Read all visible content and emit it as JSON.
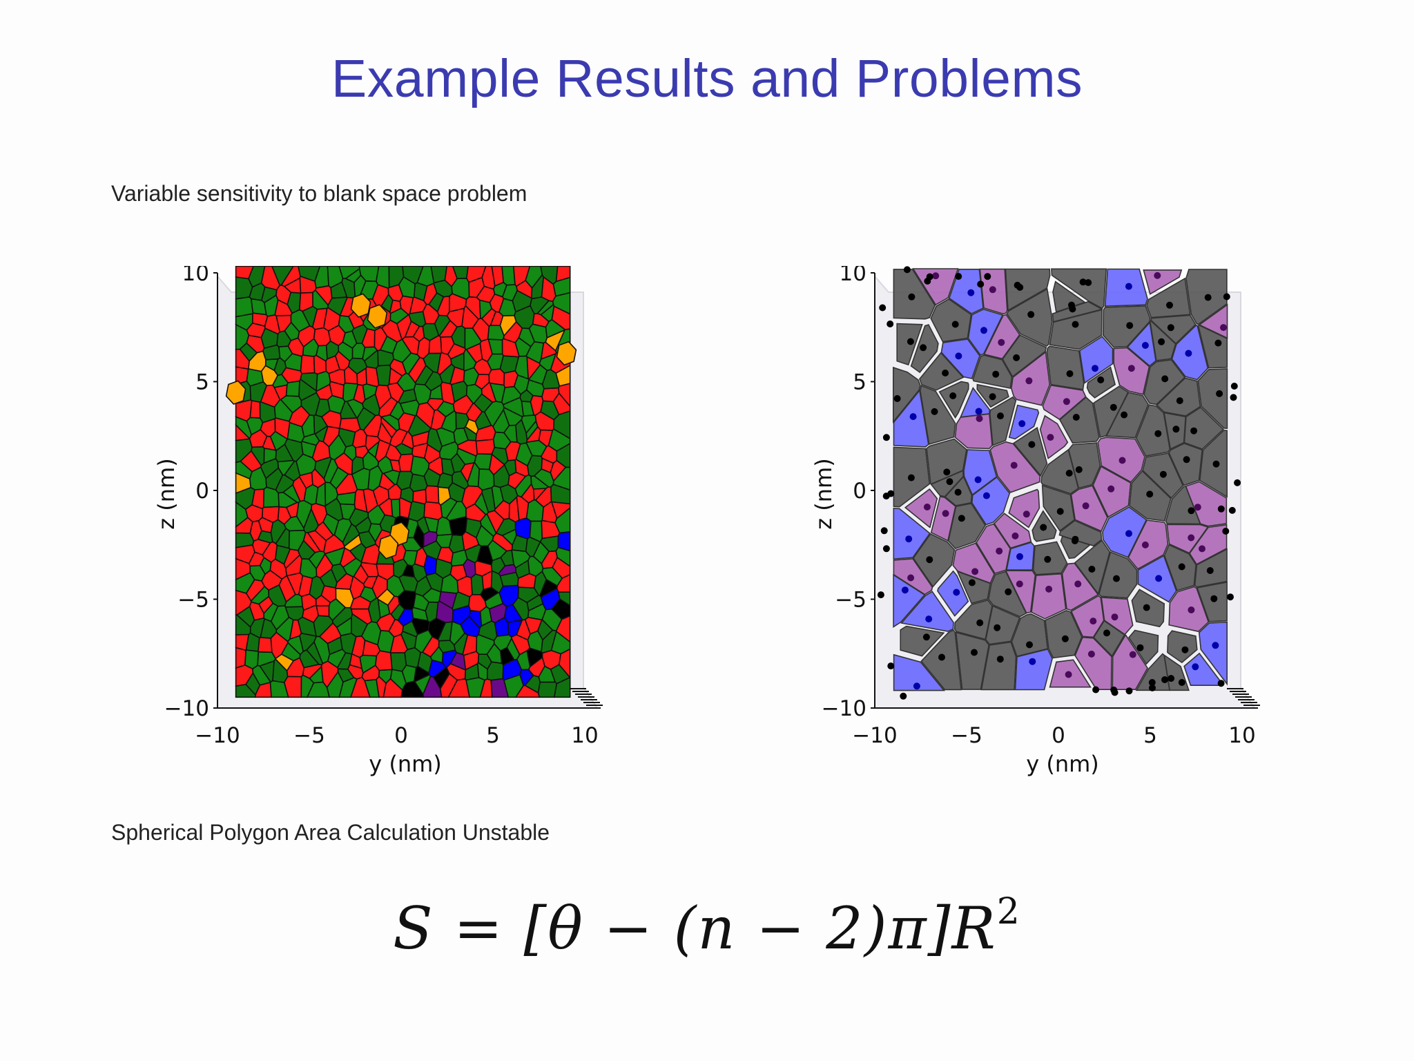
{
  "slide": {
    "title": "Example Results and Problems",
    "caption_1": "Variable sensitivity to blank space problem",
    "caption_2": "Spherical Polygon Area Calculation Unstable",
    "formula": {
      "main": "S = [θ − (n − 2)π]R",
      "exponent": "2"
    }
  },
  "plots": [
    {
      "id": "left",
      "xlabel": "y (nm)",
      "ylabel": "z (nm)",
      "xticks": [
        "−10",
        "−5",
        "0",
        "5",
        "10"
      ],
      "yticks": [
        "10",
        "5",
        "0",
        "−5",
        "−10"
      ],
      "xlim": [
        -10,
        10
      ],
      "ylim": [
        -10,
        10
      ],
      "cell_colors": [
        "#c00000",
        "#ff1a1a",
        "#107010",
        "#138a13",
        "#0a7a0a",
        "#ffa500",
        "#0000ff",
        "#000000",
        "#6a0a8a"
      ],
      "points_shown": false
    },
    {
      "id": "right",
      "xlabel": "y (nm)",
      "ylabel": "z (nm)",
      "xticks": [
        "−10",
        "−5",
        "0",
        "5",
        "10"
      ],
      "yticks": [
        "10",
        "5",
        "0",
        "−5",
        "−10"
      ],
      "xlim": [
        -10,
        10
      ],
      "ylim": [
        -10,
        10
      ],
      "cell_colors": [
        "#5a5a5a",
        "#b06ab8",
        "#6a6aff"
      ],
      "points_shown": true
    }
  ]
}
